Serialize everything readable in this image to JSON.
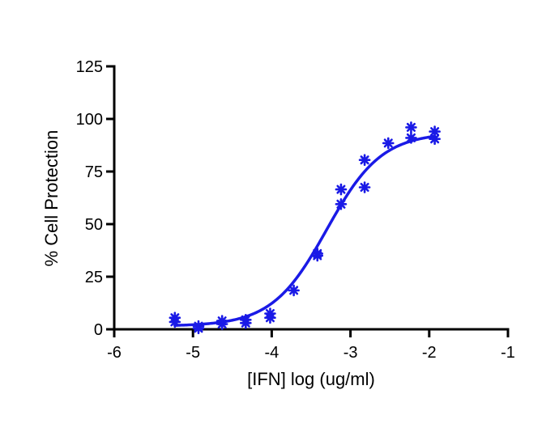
{
  "chart_data": {
    "type": "scatter",
    "title": "",
    "xlabel": "[IFN] log (ug/ml)",
    "ylabel": "% Cell Protection",
    "xlim": [
      -6,
      -1
    ],
    "ylim": [
      0,
      125
    ],
    "xticks": [
      -6,
      -5,
      -4,
      -3,
      -2,
      -1
    ],
    "xtick_labels": [
      "-6",
      "-5",
      "-4",
      "-3",
      "-2",
      "-1"
    ],
    "yticks": [
      0,
      25,
      50,
      75,
      100,
      125
    ],
    "ytick_labels": [
      "0",
      "25",
      "50",
      "75",
      "100",
      "125"
    ],
    "grid": false,
    "legend": "none",
    "color": "#1a1ae6",
    "marker": "asterisk",
    "series": [
      {
        "points": [
          [
            -5.23,
            5.5
          ],
          [
            -5.23,
            3.5
          ],
          [
            -4.93,
            0.5
          ],
          [
            -4.93,
            1.5
          ],
          [
            -4.63,
            4.0
          ],
          [
            -4.63,
            2.5
          ],
          [
            -4.33,
            4.5
          ],
          [
            -4.33,
            3.0
          ],
          [
            -4.02,
            7.5
          ],
          [
            -4.02,
            5.5
          ],
          [
            -3.72,
            18.5
          ],
          [
            -3.42,
            36.0
          ],
          [
            -3.42,
            35.0
          ],
          [
            -3.12,
            66.5
          ],
          [
            -3.12,
            59.5
          ],
          [
            -2.82,
            80.5
          ],
          [
            -2.82,
            67.5
          ],
          [
            -2.52,
            88.5
          ],
          [
            -2.23,
            96.0
          ],
          [
            -2.23,
            91.0
          ],
          [
            -1.93,
            94.0
          ],
          [
            -1.93,
            90.5
          ]
        ],
        "fit": {
          "model": "four-parameter logistic",
          "bottom": 1.5,
          "top": 93.5,
          "log_ec50": -3.3,
          "hill_slope": 1.25,
          "x_range": [
            -5.23,
            -1.93
          ]
        }
      }
    ]
  }
}
